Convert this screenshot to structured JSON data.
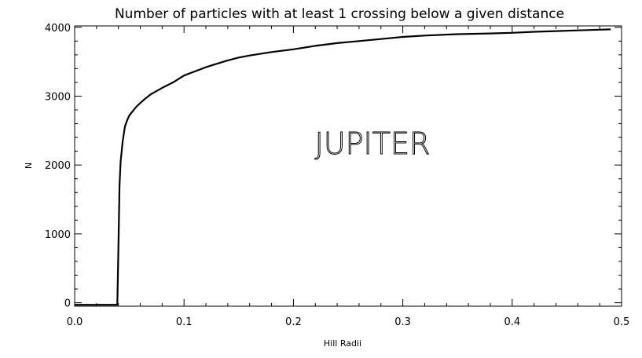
{
  "chart_data": {
    "type": "line",
    "title": "Number of particles with at least 1 crossing below a given distance",
    "xlabel": "Hill Radii",
    "ylabel": "N",
    "annotation": "JUPITER",
    "xlim": [
      0.0,
      0.5
    ],
    "ylim": [
      -50,
      4020
    ],
    "x_ticks": [
      0.0,
      0.1,
      0.2,
      0.3,
      0.4,
      0.5
    ],
    "x_tick_labels": [
      "0.0",
      "0.1",
      "0.2",
      "0.3",
      "0.4",
      "0.5"
    ],
    "y_ticks": [
      0,
      1000,
      2000,
      3000,
      4000
    ],
    "y_tick_labels": [
      "0",
      "1000",
      "2000",
      "3000",
      "4000"
    ],
    "grid": false,
    "series": [
      {
        "x": [
          0.0,
          0.039,
          0.04,
          0.041,
          0.042,
          0.044,
          0.046,
          0.048,
          0.05,
          0.053,
          0.056,
          0.06,
          0.065,
          0.07,
          0.08,
          0.09,
          0.1,
          0.11,
          0.12,
          0.13,
          0.14,
          0.15,
          0.16,
          0.18,
          0.2,
          0.22,
          0.24,
          0.26,
          0.28,
          0.3,
          0.32,
          0.35,
          0.38,
          0.4,
          0.42,
          0.44,
          0.46,
          0.48,
          0.49
        ],
        "y": [
          -30,
          -30,
          800,
          1700,
          2050,
          2350,
          2560,
          2650,
          2720,
          2780,
          2840,
          2900,
          2970,
          3030,
          3120,
          3200,
          3300,
          3360,
          3420,
          3470,
          3520,
          3560,
          3590,
          3640,
          3680,
          3730,
          3770,
          3800,
          3830,
          3860,
          3880,
          3900,
          3910,
          3920,
          3935,
          3945,
          3955,
          3965,
          3970
        ]
      }
    ]
  }
}
